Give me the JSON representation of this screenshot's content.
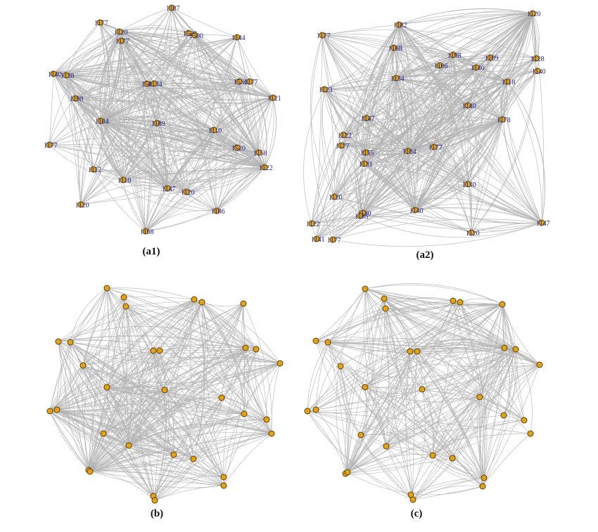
{
  "panels": [
    {
      "id": "a1",
      "caption": "(a1)",
      "labels": [
        "1187",
        "1177",
        "1120",
        "1177",
        "1520",
        "1500",
        "1144",
        "1140",
        "1138",
        "1198",
        "1565",
        "1134",
        "1530",
        "1177",
        "1121",
        "1104",
        "1189",
        "1110",
        "1177",
        "1520",
        "1158",
        "1122",
        "1112",
        "1110",
        "1147",
        "1120",
        "1120",
        "1186",
        "1108"
      ]
    },
    {
      "id": "a2",
      "caption": "(a2)",
      "labels": [
        "1177",
        "1182",
        "1120",
        "1168",
        "1198",
        "1109",
        "1128",
        "1106",
        "1140",
        "1140",
        "1123",
        "1134",
        "1118",
        "1140",
        "1147",
        "1178",
        "1122",
        "1177",
        "1155",
        "1104",
        "1177",
        "1131",
        "1130",
        "1120",
        "1130",
        "1140",
        "1185",
        "1120",
        "1147",
        "1122",
        "1141",
        "1177"
      ]
    },
    {
      "id": "b",
      "caption": "(b)"
    },
    {
      "id": "c",
      "caption": "(c)"
    }
  ]
}
